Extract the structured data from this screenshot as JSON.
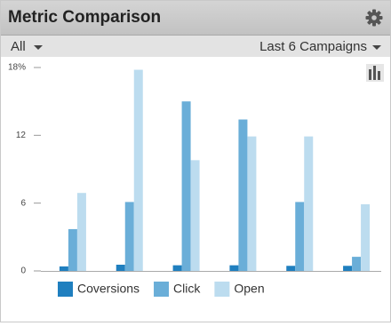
{
  "header": {
    "title": "Metric Comparison",
    "segment": "All",
    "range": "Last 6 Campaigns"
  },
  "chart_data": {
    "type": "bar",
    "categories": [
      null,
      null,
      null,
      null,
      null,
      null
    ],
    "series": [
      {
        "name": "Coversions",
        "color": "#1f7fbf",
        "values": [
          0.4,
          0.55,
          0.5,
          0.5,
          0.45,
          0.45
        ]
      },
      {
        "name": "Click",
        "color": "#6aaed8",
        "values": [
          3.7,
          6.1,
          15.0,
          13.4,
          6.1,
          1.25
        ]
      },
      {
        "name": "Open",
        "color": "#bcdcef",
        "values": [
          6.9,
          17.8,
          9.8,
          11.9,
          11.9,
          5.9
        ]
      }
    ],
    "ylim": [
      0,
      18
    ],
    "yticks": [
      0,
      6,
      12,
      {
        "value": 18,
        "label": "18%"
      }
    ]
  }
}
